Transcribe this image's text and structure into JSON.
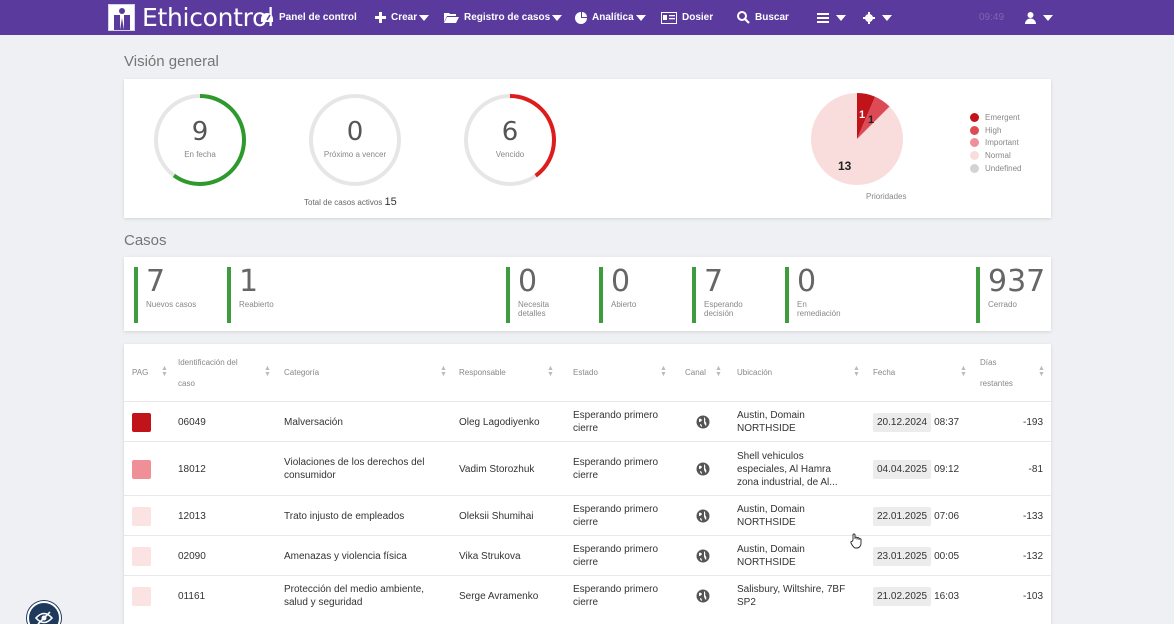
{
  "app": {
    "name": "Ethicontrol",
    "clock": "09:49"
  },
  "nav": {
    "panel": "Panel de control",
    "crear": "Crear",
    "registro": "Registro de casos",
    "analitica": "Analítica",
    "dosier": "Dosier",
    "buscar": "Buscar"
  },
  "overview": {
    "title": "Visión general",
    "gauges": [
      {
        "value": "9",
        "label": "En fecha",
        "color": "#2e9a2e",
        "fill": 0.6
      },
      {
        "value": "0",
        "label": "Próximo a vencer",
        "color": "#e6e6e6",
        "fill": 0
      },
      {
        "value": "6",
        "label": "Vencido",
        "color": "#dd1c1c",
        "fill": 0.4
      }
    ],
    "total_label": "Total de casos activos",
    "total_value": "15",
    "priorities_label": "Prioridades",
    "pie_labels": {
      "emergent": "1",
      "high": "1",
      "normal": "13"
    },
    "legend": [
      {
        "label": "Emergent",
        "color": "#c0131a"
      },
      {
        "label": "High",
        "color": "#dc4a55"
      },
      {
        "label": "Important",
        "color": "#ef8f97"
      },
      {
        "label": "Normal",
        "color": "#f9dddd"
      },
      {
        "label": "Undefined",
        "color": "#d3d3d3"
      }
    ]
  },
  "casos": {
    "title": "Casos",
    "stats": [
      {
        "num": "7",
        "l1": "Nuevos casos",
        "l2": ""
      },
      {
        "num": "1",
        "l1": "Reabierto",
        "l2": ""
      },
      {
        "num": "0",
        "l1": "Necesita",
        "l2": "detalles"
      },
      {
        "num": "0",
        "l1": "Abierto",
        "l2": ""
      },
      {
        "num": "7",
        "l1": "Esperando",
        "l2": "decisión"
      },
      {
        "num": "0",
        "l1": "En",
        "l2": "remediación"
      },
      {
        "num": "937",
        "l1": "Cerrado",
        "l2": ""
      }
    ]
  },
  "table": {
    "headers": {
      "pag": "PAG",
      "id1": "Identificación del",
      "id2": "caso",
      "categoria": "Categoría",
      "responsable": "Responsable",
      "estado": "Estado",
      "canal": "Canal",
      "ubicacion": "Ubicación",
      "fecha": "Fecha",
      "dias1": "Días",
      "dias2": "restantes"
    },
    "rows": [
      {
        "pag_color": "#c0131a",
        "id": "06049",
        "categoria": "Malversación",
        "responsable": "Oleg Lagodiyenko",
        "estado": "Esperando primero cierre",
        "ubicacion": "Austin, Domain NORTHSIDE",
        "fecha": "20.12.2024",
        "hora": "08:37",
        "dias": "-193"
      },
      {
        "pag_color": "#ef8f97",
        "id": "18012",
        "categoria": "Violaciones de los derechos del consumidor",
        "responsable": "Vadim Storozhuk",
        "estado": "Esperando primero cierre",
        "ubicacion": "Shell vehiculos especiales, Al Hamra zona industrial, de Al...",
        "fecha": "04.04.2025",
        "hora": "09:12",
        "dias": "-81"
      },
      {
        "pag_color": "#fbe3e3",
        "id": "12013",
        "categoria": "Trato injusto de empleados",
        "responsable": "Oleksii Shumihai",
        "estado": "Esperando primero cierre",
        "ubicacion": "Austin, Domain NORTHSIDE",
        "fecha": "22.01.2025",
        "hora": "07:06",
        "dias": "-133"
      },
      {
        "pag_color": "#fbe3e3",
        "id": "02090",
        "categoria": "Amenazas y violencia física",
        "responsable": "Vika Strukova",
        "estado": "Esperando primero cierre",
        "ubicacion": "Austin, Domain NORTHSIDE",
        "fecha": "23.01.2025",
        "hora": "00:05",
        "dias": "-132"
      },
      {
        "pag_color": "#fbe3e3",
        "id": "01161",
        "categoria": "Protección del medio ambiente, salud y seguridad",
        "responsable": "Serge Avramenko",
        "estado": "Esperando primero cierre",
        "ubicacion": "Salisbury, Wiltshire, 7BF SP2",
        "fecha": "21.02.2025",
        "hora": "16:03",
        "dias": "-103"
      }
    ]
  }
}
